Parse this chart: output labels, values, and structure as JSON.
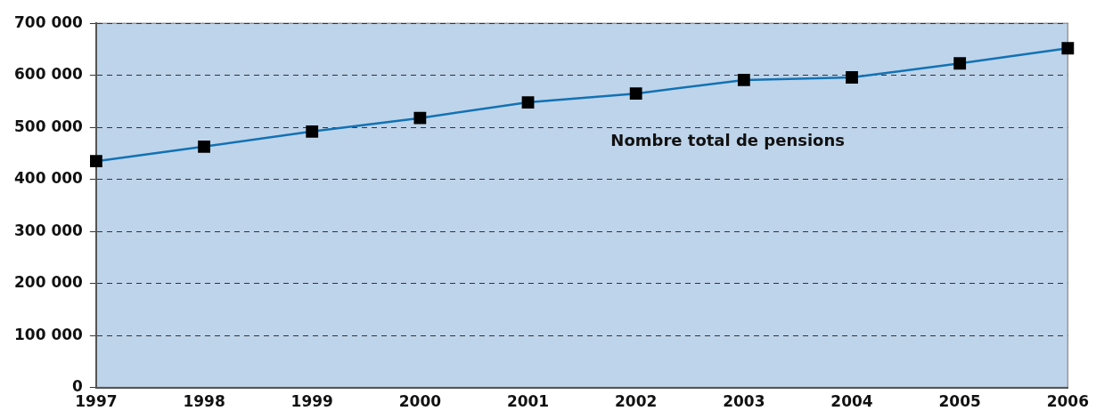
{
  "chart_data": {
    "type": "line",
    "categories": [
      "1997",
      "1998",
      "1999",
      "2000",
      "2001",
      "2002",
      "2003",
      "2004",
      "2005",
      "2006"
    ],
    "series": [
      {
        "name": "Nombre total de pensions",
        "color": "#1272b4",
        "values": [
          435000,
          463000,
          492000,
          518000,
          548000,
          565000,
          591000,
          596000,
          623000,
          652000
        ]
      }
    ],
    "ylim": [
      0,
      700000
    ],
    "yticks": [
      {
        "value": 0,
        "label": "0"
      },
      {
        "value": 100000,
        "label": "100 000"
      },
      {
        "value": 200000,
        "label": "200 000"
      },
      {
        "value": 300000,
        "label": "300 000"
      },
      {
        "value": 400000,
        "label": "400 000"
      },
      {
        "value": 500000,
        "label": "500 000"
      },
      {
        "value": 600000,
        "label": "600 000"
      },
      {
        "value": 700000,
        "label": "700 000"
      }
    ],
    "grid": "y",
    "legend": false,
    "marker": "square",
    "line_style": "solid"
  }
}
